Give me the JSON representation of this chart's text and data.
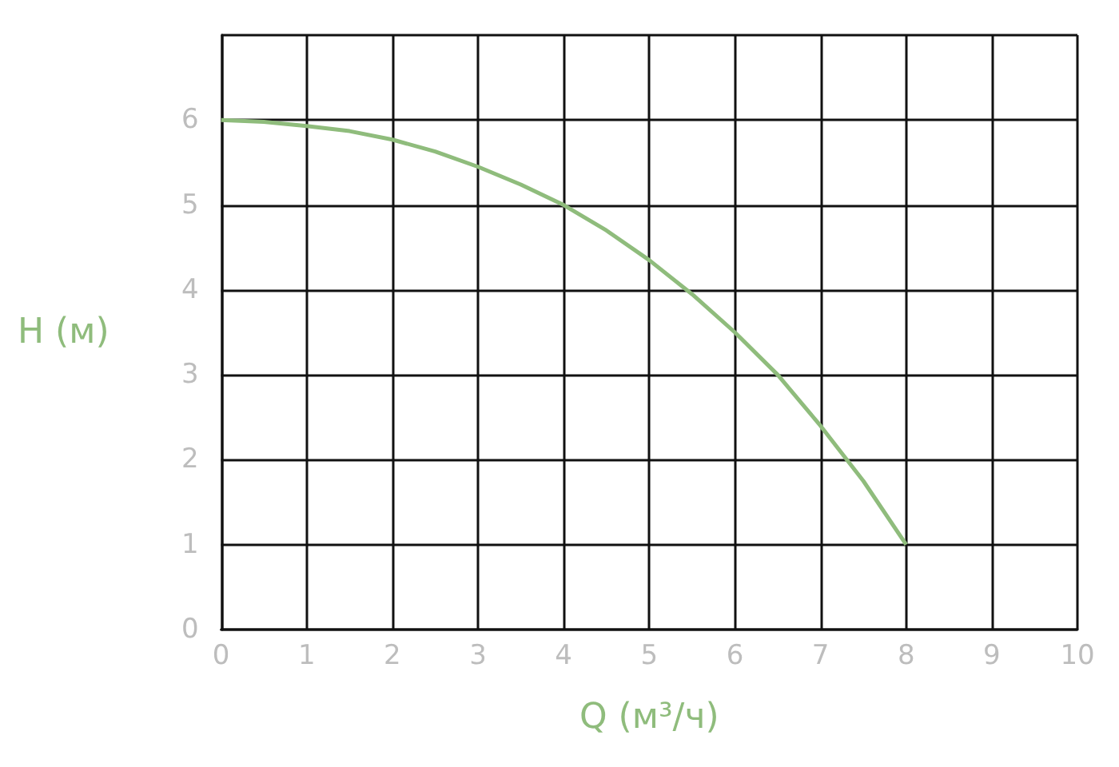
{
  "chart_data": {
    "type": "line",
    "xlabel": "Q (м³/ч)",
    "ylabel": "H (м)",
    "x": [
      0,
      0.5,
      1,
      1.5,
      2,
      2.5,
      3,
      3.5,
      4,
      4.5,
      5,
      5.5,
      6,
      6.5,
      7,
      7.5,
      8
    ],
    "series": [
      {
        "color": "#8fbc7c",
        "values": [
          6,
          5.98,
          5.93,
          5.87,
          5.77,
          5.63,
          5.45,
          5.24,
          5.0,
          4.7,
          4.35,
          3.95,
          3.5,
          3.0,
          2.4,
          1.75,
          1.0
        ]
      }
    ],
    "xlim": [
      0,
      10
    ],
    "xticks": [
      0,
      1,
      2,
      3,
      4,
      5,
      6,
      7,
      8,
      9,
      10
    ],
    "ylim": [
      0,
      7
    ],
    "yticks": [
      0,
      1,
      2,
      3,
      4,
      5,
      6
    ],
    "grid": true,
    "marker": "none",
    "line_style": "solid"
  }
}
